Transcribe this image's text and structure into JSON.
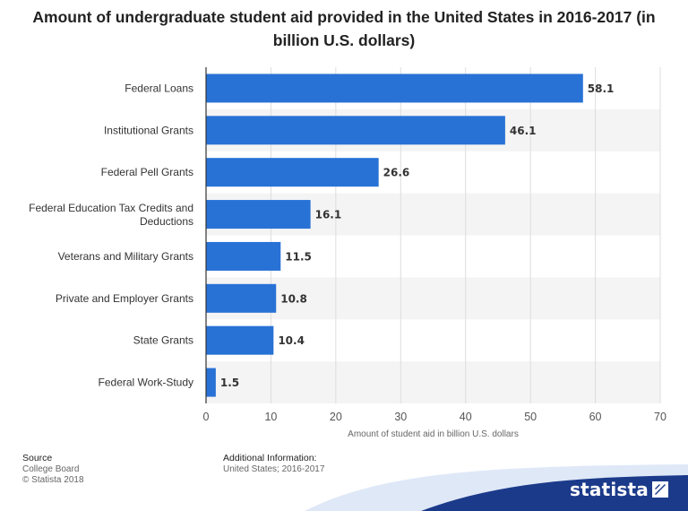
{
  "chart_data": {
    "type": "bar",
    "orientation": "horizontal",
    "title": "Amount of undergraduate student aid provided in the United States in 2016-2017 (in billion U.S. dollars)",
    "categories": [
      "Federal Loans",
      "Institutional Grants",
      "Federal Pell Grants",
      "Federal Education Tax Credits and Deductions",
      "Veterans and Military Grants",
      "Private and Employer Grants",
      "State Grants",
      "Federal Work-Study"
    ],
    "values": [
      58.1,
      46.1,
      26.6,
      16.1,
      11.5,
      10.8,
      10.4,
      1.5
    ],
    "value_labels": [
      "58.1",
      "46.1",
      "26.6",
      "16.1",
      "11.5",
      "10.8",
      "10.4",
      "1.5"
    ],
    "xlabel": "Amount of student aid in billion U.S. dollars",
    "ylabel": "",
    "xlim": [
      0,
      70
    ],
    "xticks": [
      "0",
      "10",
      "20",
      "30",
      "40",
      "50",
      "60",
      "70"
    ],
    "grid": true,
    "legend": "none",
    "colors": {
      "bar": "#2872d6",
      "band": "#f4f4f4",
      "grid": "#dddddd",
      "axis": "#333333"
    }
  },
  "footer": {
    "source_heading": "Source",
    "source_lines": [
      "College Board",
      "© Statista 2018"
    ],
    "info_heading": "Additional Information:",
    "info_text": "United States; 2016-2017"
  },
  "brand": {
    "name": "statista",
    "color": "#1b3a8a"
  }
}
